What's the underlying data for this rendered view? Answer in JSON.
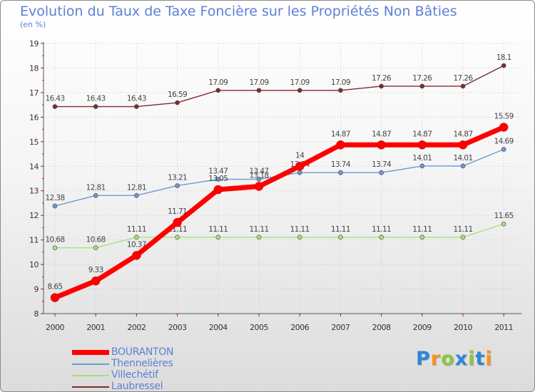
{
  "chart_data": {
    "type": "line",
    "title": "Evolution du Taux de Taxe Foncière sur les Propriétés Non Bâties",
    "subtitle": "(en %)",
    "xlabel": "",
    "ylabel": "",
    "ylim": [
      8,
      19
    ],
    "yticks": [
      "8",
      "9",
      "10",
      "11",
      "12",
      "13",
      "14",
      "15",
      "16",
      "17",
      "18",
      "19"
    ],
    "categories": [
      "2000",
      "2001",
      "2002",
      "2003",
      "2004",
      "2005",
      "2006",
      "2007",
      "2008",
      "2009",
      "2010",
      "2011"
    ],
    "series": [
      {
        "name": "Laubressel",
        "color": "#7a2e2e",
        "values": [
          16.43,
          16.43,
          16.43,
          16.59,
          17.09,
          17.09,
          17.09,
          17.09,
          17.26,
          17.26,
          17.26,
          18.1
        ],
        "labels": [
          "16.43",
          "16.43",
          "16.43",
          "16.59",
          "17.09",
          "17.09",
          "17.09",
          "17.09",
          "17.26",
          "17.26",
          "17.26",
          "18.1"
        ]
      },
      {
        "name": "Thennelières",
        "color": "#6c9ad0",
        "values": [
          12.38,
          12.81,
          12.81,
          13.21,
          13.47,
          13.47,
          13.74,
          13.74,
          13.74,
          14.01,
          14.01,
          14.69
        ],
        "labels": [
          "12.38",
          "12.81",
          "12.81",
          "13.21",
          "13.47",
          "13.47",
          "13.74",
          "13.74",
          "13.74",
          "14.01",
          "14.01",
          "14.69"
        ]
      },
      {
        "name": "Villechétif",
        "color": "#a8e07a",
        "values": [
          10.68,
          10.68,
          11.11,
          11.11,
          11.11,
          11.11,
          11.11,
          11.11,
          11.11,
          11.11,
          11.11,
          11.65
        ],
        "labels": [
          "10.68",
          "10.68",
          "11.11",
          "11.11",
          "11.11",
          "11.11",
          "11.11",
          "11.11",
          "11.11",
          "11.11",
          "11.11",
          "11.65"
        ]
      },
      {
        "name": "BOURANTON",
        "color": "#ff0000",
        "values": [
          8.65,
          9.33,
          10.37,
          11.71,
          13.05,
          13.18,
          14,
          14.87,
          14.87,
          14.87,
          14.87,
          15.59
        ],
        "labels": [
          "8.65",
          "9.33",
          "10.37",
          "11.71",
          "13.05",
          "13.18",
          "14",
          "14.87",
          "14.87",
          "14.87",
          "14.87",
          "15.59"
        ]
      }
    ],
    "legend": [
      {
        "name": "BOURANTON",
        "color": "#ff0000"
      },
      {
        "name": "Thennelières",
        "color": "#6c9ad0"
      },
      {
        "name": "Villechétif",
        "color": "#a8e07a"
      },
      {
        "name": "Laubressel",
        "color": "#7a2e2e"
      }
    ]
  },
  "logo": {
    "letters": [
      "P",
      "r",
      "o",
      "x",
      "i",
      "t",
      "i"
    ],
    "colors": [
      "#2e86d9",
      "#f7941d",
      "#8dc63f",
      "#2e86d9",
      "#8dc63f",
      "#2e86d9",
      "#f7941d"
    ]
  }
}
